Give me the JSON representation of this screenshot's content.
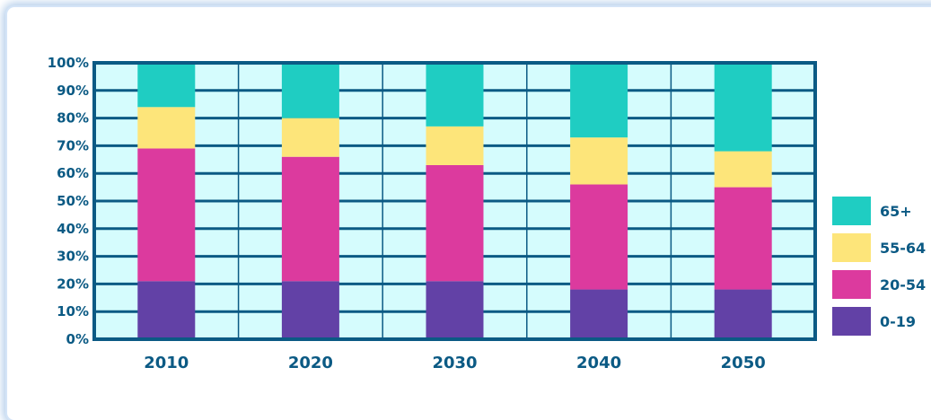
{
  "chart_data": {
    "type": "bar",
    "stacked": true,
    "categories": [
      "2010",
      "2020",
      "2030",
      "2040",
      "2050"
    ],
    "series": [
      {
        "name": "0-19",
        "color": "#6241a6",
        "values": [
          21,
          21,
          21,
          18,
          18
        ]
      },
      {
        "name": "20-54",
        "color": "#dc3a9e",
        "values": [
          48,
          45,
          42,
          38,
          37
        ]
      },
      {
        "name": "55-64",
        "color": "#fde57a",
        "values": [
          15,
          14,
          14,
          17,
          13
        ]
      },
      {
        "name": "65+",
        "color": "#1fcdc2",
        "values": [
          16,
          20,
          23,
          27,
          32
        ]
      }
    ],
    "yticks": [
      "0%",
      "10%",
      "20%",
      "30%",
      "40%",
      "50%",
      "60%",
      "70%",
      "80%",
      "90%",
      "100%"
    ],
    "ylim": [
      0,
      100
    ],
    "grid": true,
    "legend_position": "right",
    "colors": {
      "plot_background": "#d5fcfd",
      "frame": "#0b5a84",
      "gridline": "#0b5a84",
      "text": "#0b5a84"
    }
  }
}
